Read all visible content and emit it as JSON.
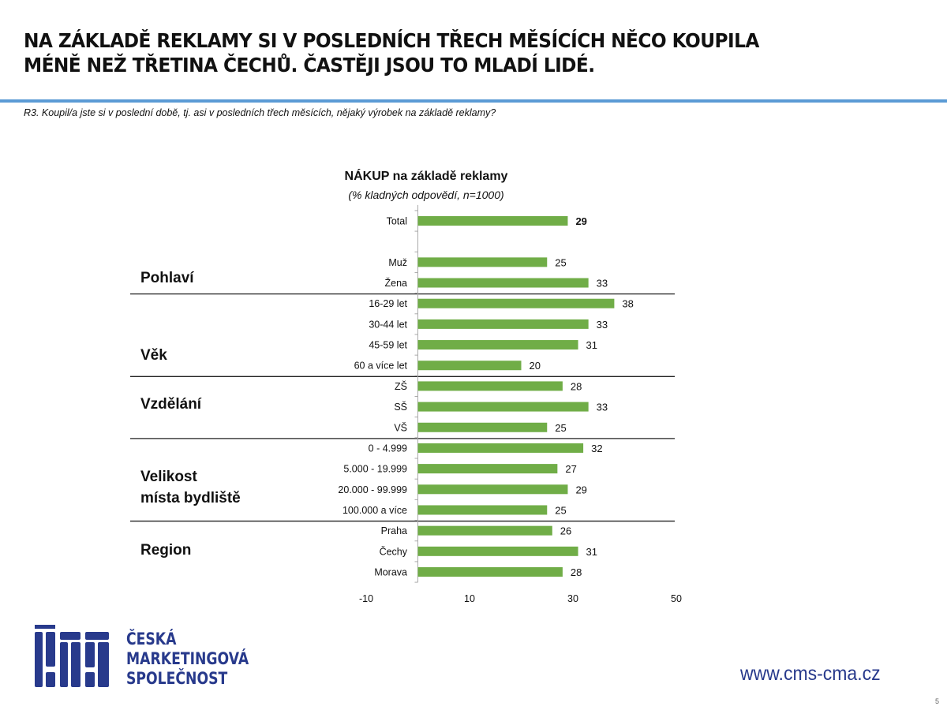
{
  "header": {
    "title_line1": "NA ZÁKLADĚ REKLAMY SI V POSLEDNÍCH TŘECH MĚSÍCÍCH NĚCO KOUPILA",
    "title_line2": "MÉNĚ NEŽ TŘETINA ČECHŮ. ČASTĚJI JSOU TO MLADÍ LIDÉ.",
    "question": "R3. Koupil/a jste si v poslední době, tj. asi v posledních třech měsících, nějaký výrobek na základě reklamy?"
  },
  "chart_data": {
    "type": "bar",
    "orientation": "horizontal",
    "title": "NÁKUP na základě reklamy",
    "subtitle": "(% kladných odpovědí, n=1000)",
    "categories": [
      "Total",
      "",
      "Muž",
      "Žena",
      "16-29 let",
      "30-44 let",
      "45-59 let",
      "60 a více let",
      "ZŠ",
      "SŠ",
      "VŠ",
      "0 - 4.999",
      "5.000 - 19.999",
      "20.000 - 99.999",
      "100.000 a více",
      "Praha",
      "Čechy",
      "Morava"
    ],
    "values": [
      29,
      null,
      25,
      33,
      38,
      33,
      31,
      20,
      28,
      33,
      25,
      32,
      27,
      29,
      25,
      26,
      31,
      28
    ],
    "xlim": [
      -10,
      50
    ],
    "xticks": [
      "-10",
      "10",
      "30",
      "50"
    ],
    "xtick_values": [
      -10,
      10,
      30,
      50
    ],
    "bar_color": "#70ad47",
    "groups": [
      {
        "label": "Pohlaví",
        "lines": [
          "Pohlaví"
        ]
      },
      {
        "label": "Věk",
        "lines": [
          "Věk"
        ]
      },
      {
        "label": "Vzdělání",
        "lines": [
          "Vzdělání"
        ]
      },
      {
        "label": "Velikost místa bydliště",
        "lines": [
          "Velikost",
          "místa bydliště"
        ]
      },
      {
        "label": "Region",
        "lines": [
          "Region"
        ]
      }
    ]
  },
  "footer": {
    "logo_lines": [
      "ČESKÁ",
      "MARKETINGOVÁ",
      "SPOLEČNOST"
    ],
    "logo_mark": "CMS",
    "url": "www.cms-cma.cz",
    "page_number": "5"
  }
}
